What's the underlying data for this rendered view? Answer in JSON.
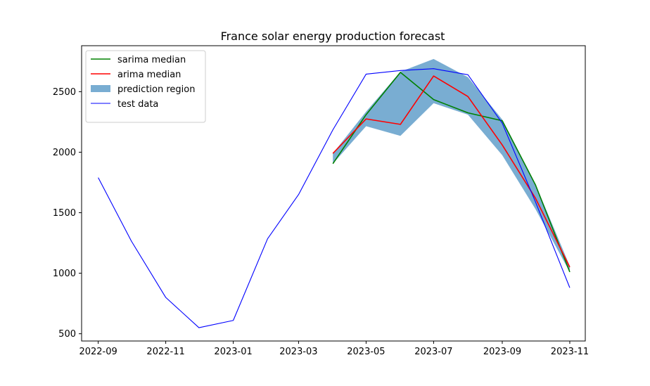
{
  "chart_data": {
    "type": "line",
    "title": "France solar energy production forecast",
    "xlabel": "",
    "ylabel": "",
    "x_ticks": [
      "2022-09",
      "2022-11",
      "2023-01",
      "2023-03",
      "2023-05",
      "2023-07",
      "2023-09",
      "2023-11"
    ],
    "y_ticks": [
      500,
      1000,
      1500,
      2000,
      2500
    ],
    "xlim": [
      "2022-08-17",
      "2023-11-15"
    ],
    "ylim": [
      440,
      2880
    ],
    "grid": false,
    "legend_position": "top-left",
    "series": [
      {
        "name": "sarima median",
        "color": "#008000",
        "x": [
          "2023-04",
          "2023-05",
          "2023-06",
          "2023-07",
          "2023-08",
          "2023-09",
          "2023-10",
          "2023-11"
        ],
        "values": [
          1905,
          2310,
          2660,
          2435,
          2325,
          2260,
          1730,
          1010
        ]
      },
      {
        "name": "arima median",
        "color": "#ff0000",
        "x": [
          "2023-04",
          "2023-05",
          "2023-06",
          "2023-07",
          "2023-08",
          "2023-09",
          "2023-10",
          "2023-11"
        ],
        "values": [
          1990,
          2275,
          2230,
          2630,
          2460,
          2060,
          1620,
          1050
        ]
      },
      {
        "name": "test data",
        "color": "#0000ff",
        "x": [
          "2022-09",
          "2022-10",
          "2022-11",
          "2022-12",
          "2023-01",
          "2023-02",
          "2023-03",
          "2023-04",
          "2023-05",
          "2023-06",
          "2023-07",
          "2023-08",
          "2023-09",
          "2023-10",
          "2023-11"
        ],
        "values": [
          1790,
          1265,
          800,
          550,
          610,
          1285,
          1650,
          2185,
          2645,
          2675,
          2690,
          2640,
          2240,
          1590,
          880
        ]
      }
    ],
    "band": {
      "name": "prediction region",
      "color": "#1f77b4",
      "opacity": 0.6,
      "x": [
        "2023-04",
        "2023-05",
        "2023-06",
        "2023-07",
        "2023-08",
        "2023-09",
        "2023-10",
        "2023-11"
      ],
      "lower": [
        1905,
        2215,
        2135,
        2405,
        2310,
        1975,
        1530,
        1010
      ],
      "upper": [
        1990,
        2335,
        2665,
        2770,
        2620,
        2270,
        1735,
        1060
      ]
    }
  }
}
